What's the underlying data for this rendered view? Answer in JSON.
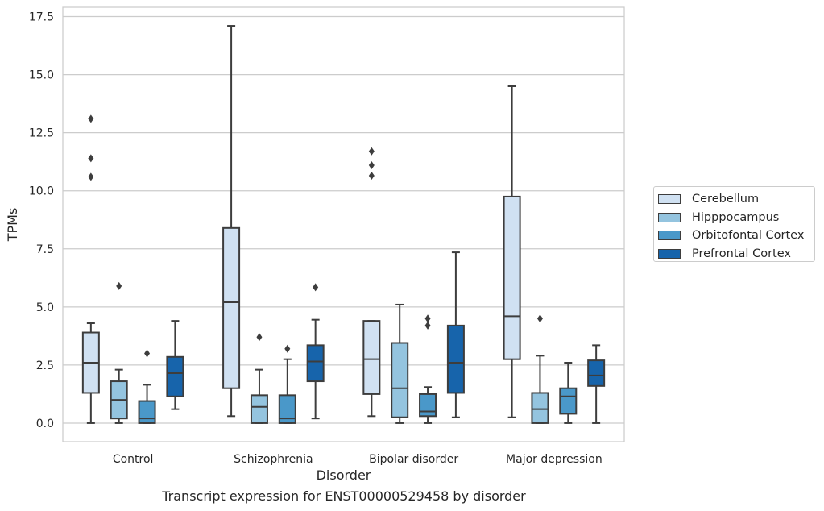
{
  "caption": "Transcript expression for ENST00000529458 by disorder",
  "legend": {
    "items": [
      {
        "label": "Cerebellum",
        "color": "#d0e1f2"
      },
      {
        "label": "Hipppocampus",
        "color": "#94c4df"
      },
      {
        "label": "Orbitofontal Cortex",
        "color": "#4a98c9"
      },
      {
        "label": "Prefrontal Cortex",
        "color": "#1764ab"
      }
    ]
  },
  "chart_data": {
    "type": "box",
    "title": "",
    "xlabel": "Disorder",
    "ylabel": "TPMs",
    "categories": [
      "Control",
      "Schizophrenia",
      "Bipolar disorder",
      "Major depression"
    ],
    "ylim": [
      -0.8,
      17.9
    ],
    "yticks": [
      "0.0",
      "2.5",
      "5.0",
      "7.5",
      "10.0",
      "12.5",
      "15.0",
      "17.5"
    ],
    "grid": "horizontal",
    "legend_position": "right",
    "series": [
      {
        "name": "Cerebellum",
        "boxes": [
          {
            "whislo": 0.0,
            "q1": 1.3,
            "med": 2.6,
            "q3": 3.9,
            "whishi": 4.3,
            "fliers": [
              10.6,
              11.4,
              13.1
            ]
          },
          {
            "whislo": 0.3,
            "q1": 1.5,
            "med": 5.2,
            "q3": 8.4,
            "whishi": 17.1,
            "fliers": []
          },
          {
            "whislo": 0.3,
            "q1": 1.25,
            "med": 2.75,
            "q3": 4.4,
            "whishi": 4.4,
            "fliers": [
              10.65,
              11.1,
              11.7
            ]
          },
          {
            "whislo": 0.25,
            "q1": 2.75,
            "med": 4.6,
            "q3": 9.75,
            "whishi": 14.5,
            "fliers": []
          }
        ]
      },
      {
        "name": "Hipppocampus",
        "boxes": [
          {
            "whislo": 0.0,
            "q1": 0.2,
            "med": 1.0,
            "q3": 1.8,
            "whishi": 2.3,
            "fliers": [
              5.9
            ]
          },
          {
            "whislo": 0.0,
            "q1": 0.0,
            "med": 0.7,
            "q3": 1.2,
            "whishi": 2.3,
            "fliers": [
              3.7
            ]
          },
          {
            "whislo": 0.0,
            "q1": 0.25,
            "med": 1.5,
            "q3": 3.45,
            "whishi": 5.1,
            "fliers": []
          },
          {
            "whislo": 0.0,
            "q1": 0.0,
            "med": 0.6,
            "q3": 1.3,
            "whishi": 2.9,
            "fliers": [
              4.5
            ]
          }
        ]
      },
      {
        "name": "Orbitofontal Cortex",
        "boxes": [
          {
            "whislo": 0.0,
            "q1": 0.0,
            "med": 0.2,
            "q3": 0.95,
            "whishi": 1.65,
            "fliers": [
              3.0
            ]
          },
          {
            "whislo": 0.0,
            "q1": 0.0,
            "med": 0.2,
            "q3": 1.2,
            "whishi": 2.75,
            "fliers": [
              3.2
            ]
          },
          {
            "whislo": 0.0,
            "q1": 0.3,
            "med": 0.5,
            "q3": 1.25,
            "whishi": 1.55,
            "fliers": [
              4.2,
              4.5
            ]
          },
          {
            "whislo": 0.0,
            "q1": 0.4,
            "med": 1.15,
            "q3": 1.5,
            "whishi": 2.6,
            "fliers": []
          }
        ]
      },
      {
        "name": "Prefrontal Cortex",
        "boxes": [
          {
            "whislo": 0.6,
            "q1": 1.15,
            "med": 2.15,
            "q3": 2.85,
            "whishi": 4.4,
            "fliers": []
          },
          {
            "whislo": 0.2,
            "q1": 1.8,
            "med": 2.65,
            "q3": 3.35,
            "whishi": 4.45,
            "fliers": [
              5.85
            ]
          },
          {
            "whislo": 0.25,
            "q1": 1.3,
            "med": 2.6,
            "q3": 4.2,
            "whishi": 7.35,
            "fliers": []
          },
          {
            "whislo": 0.0,
            "q1": 1.6,
            "med": 2.05,
            "q3": 2.7,
            "whishi": 3.35,
            "fliers": []
          }
        ]
      }
    ]
  }
}
